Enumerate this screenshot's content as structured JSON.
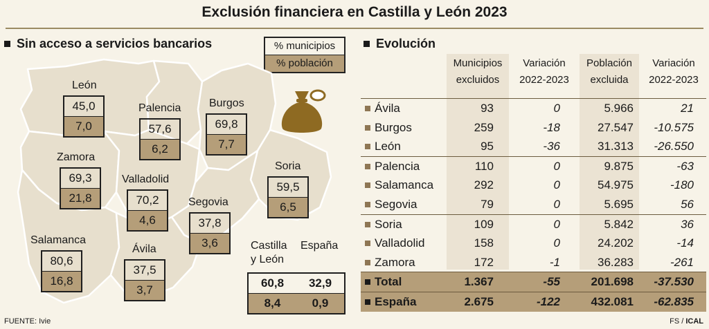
{
  "title": "Exclusión financiera en Castilla y León 2023",
  "left_heading": "Sin acceso a servicios bancarios",
  "legend": {
    "top": "% municipios",
    "bottom": "% población"
  },
  "provinces": {
    "leon": {
      "name": "León",
      "municipios": "45,0",
      "poblacion": "7,0"
    },
    "palencia": {
      "name": "Palencia",
      "municipios": "57,6",
      "poblacion": "6,2"
    },
    "burgos": {
      "name": "Burgos",
      "municipios": "69,8",
      "poblacion": "7,7"
    },
    "zamora": {
      "name": "Zamora",
      "municipios": "69,3",
      "poblacion": "21,8"
    },
    "valladolid": {
      "name": "Valladolid",
      "municipios": "70,2",
      "poblacion": "4,6"
    },
    "soria": {
      "name": "Soria",
      "municipios": "59,5",
      "poblacion": "6,5"
    },
    "segovia": {
      "name": "Segovia",
      "municipios": "37,8",
      "poblacion": "3,6"
    },
    "salamanca": {
      "name": "Salamanca",
      "municipios": "80,6",
      "poblacion": "16,8"
    },
    "avila": {
      "name": "Ávila",
      "municipios": "37,5",
      "poblacion": "3,7"
    }
  },
  "national": {
    "cyl_label_1": "Castilla",
    "cyl_label_2": "y León",
    "spain_label": "España",
    "cyl_municipios": "60,8",
    "spain_municipios": "32,9",
    "cyl_poblacion": "8,4",
    "spain_poblacion": "0,9"
  },
  "icon": "money-bag-icon",
  "right_heading": "Evolución",
  "table": {
    "headers": [
      [
        "Municipios",
        "excluidos"
      ],
      [
        "Variación",
        "2022-2023"
      ],
      [
        "Población",
        "excluida"
      ],
      [
        "Variación",
        "2022-2023"
      ]
    ],
    "rows": [
      [
        "Ávila",
        "93",
        "0",
        "5.966",
        "21"
      ],
      [
        "Burgos",
        "259",
        "-18",
        "27.547",
        "-10.575"
      ],
      [
        "León",
        "95",
        "-36",
        "31.313",
        "-26.550"
      ],
      [
        "Palencia",
        "110",
        "0",
        "9.875",
        "-63"
      ],
      [
        "Salamanca",
        "292",
        "0",
        "54.975",
        "-180"
      ],
      [
        "Segovia",
        "79",
        "0",
        "5.695",
        "56"
      ],
      [
        "Soria",
        "109",
        "0",
        "5.842",
        "36"
      ],
      [
        "Valladolid",
        "158",
        "0",
        "24.202",
        "-14"
      ],
      [
        "Zamora",
        "172",
        "-1",
        "36.283",
        "-261"
      ]
    ],
    "totals": [
      [
        "Total",
        "1.367",
        "-55",
        "201.698",
        "-37.530"
      ],
      [
        "España",
        "2.675",
        "-122",
        "432.081",
        "-62.835"
      ]
    ]
  },
  "source": "FUENTE: Ivie",
  "credit_prefix": "FS / ",
  "credit_bold": "ICAL",
  "colors": {
    "tan": "#b59e79",
    "map_fill": "#e7dfcd",
    "map_stroke": "#ffffff",
    "bag": "#8e6a22"
  }
}
